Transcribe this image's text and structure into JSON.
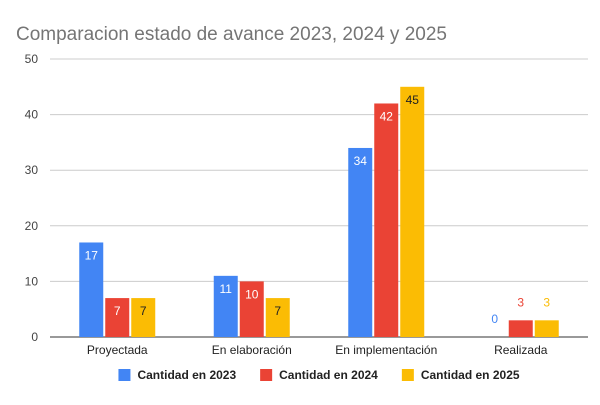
{
  "chart_data": {
    "type": "bar",
    "title": "Comparacion estado de avance 2023, 2024 y 2025",
    "xlabel": "",
    "ylabel": "",
    "categories": [
      "Proyectada",
      "En elaboración",
      "En implementación",
      "Realizada"
    ],
    "series": [
      {
        "name": "Cantidad en 2023",
        "color": "#4285F4",
        "values": [
          17,
          11,
          34,
          0
        ]
      },
      {
        "name": "Cantidad en 2024",
        "color": "#EA4335",
        "values": [
          7,
          10,
          42,
          3
        ]
      },
      {
        "name": "Cantidad en 2025",
        "color": "#FBBC04",
        "values": [
          7,
          7,
          45,
          3
        ]
      }
    ],
    "ylim": [
      0,
      50
    ],
    "yticks": [
      0,
      10,
      20,
      30,
      40,
      50
    ],
    "grid": true,
    "legend_position": "bottom",
    "data_labels": true
  }
}
